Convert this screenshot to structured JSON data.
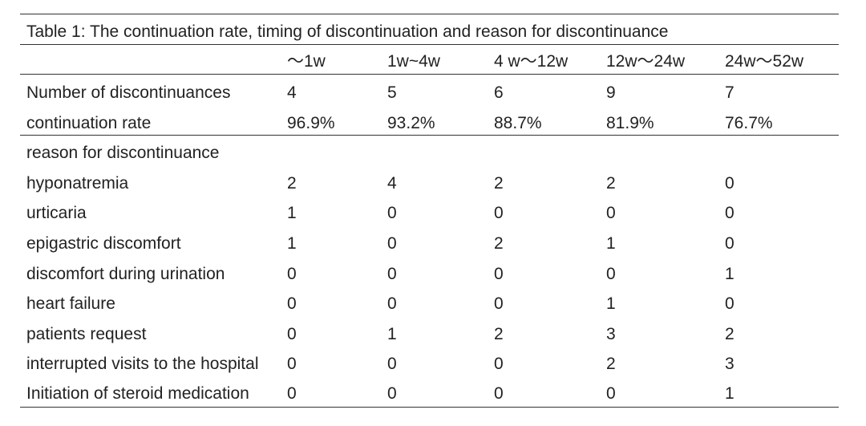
{
  "caption": "Table 1: The continuation rate, timing of discontinuation and reason for discontinuance",
  "columns": [
    "",
    "～1w",
    "1w~4w",
    "4 w～12w",
    "12w～24w",
    "24w～52w"
  ],
  "rows": [
    {
      "label": "Number of discontinuances",
      "values": [
        "4",
        "5",
        "6",
        "9",
        "7"
      ]
    },
    {
      "label": "continuation rate",
      "values": [
        "96.9%",
        "93.2%",
        "88.7%",
        "81.9%",
        "76.7%"
      ]
    },
    {
      "label": "reason for discontinuance",
      "values": [
        "",
        "",
        "",
        "",
        ""
      ]
    },
    {
      "label": "hyponatremia",
      "values": [
        "2",
        "4",
        "2",
        "2",
        "0"
      ]
    },
    {
      "label": "urticaria",
      "values": [
        "1",
        "0",
        "0",
        "0",
        "0"
      ]
    },
    {
      "label": "epigastric discomfort",
      "values": [
        "1",
        "0",
        "2",
        "1",
        "0"
      ]
    },
    {
      "label": "discomfort during urination",
      "values": [
        "0",
        "0",
        "0",
        "0",
        "1"
      ]
    },
    {
      "label": "heart failure",
      "values": [
        "0",
        "0",
        "0",
        "1",
        "0"
      ]
    },
    {
      "label": "patients request",
      "values": [
        "0",
        "1",
        "2",
        "3",
        "2"
      ]
    },
    {
      "label": "interrupted visits to the hospital",
      "values": [
        "0",
        "0",
        "0",
        "2",
        "3"
      ]
    },
    {
      "label": "Initiation of steroid medication",
      "values": [
        "0",
        "0",
        "0",
        "0",
        "1"
      ]
    }
  ]
}
